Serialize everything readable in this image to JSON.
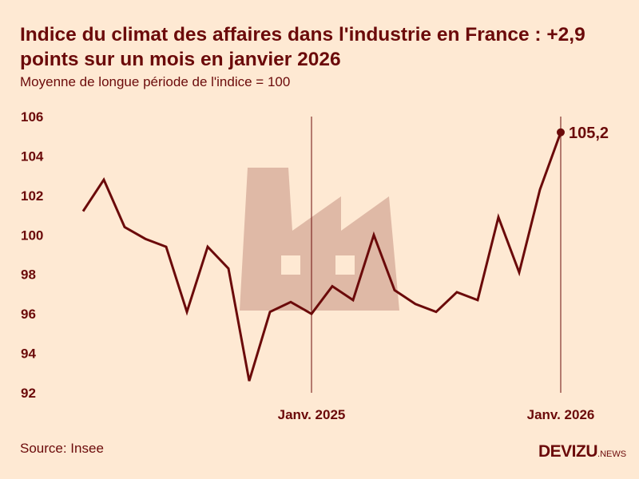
{
  "header": {
    "title": "Indice du climat des affaires dans l'industrie en France : +2,9 points sur un mois en janvier 2026",
    "subtitle": "Moyenne de longue période de l'indice = 100"
  },
  "footer": {
    "source": "Source: Insee",
    "logo": "DEVIZU",
    "logo_suffix": ".NEWS"
  },
  "colors": {
    "line": "#6b0a0a",
    "background": "#fee9d3",
    "icon": "#dfb9a6"
  },
  "decor_icon": "factory-icon",
  "chart_data": {
    "type": "line",
    "title": "Indice du climat des affaires dans l'industrie en France : +2,9 points sur un mois en janvier 2026",
    "subtitle": "Moyenne de longue période de l'indice = 100",
    "x": [
      "2024-02",
      "2024-03",
      "2024-04",
      "2024-05",
      "2024-06",
      "2024-07",
      "2024-08",
      "2024-09",
      "2024-10",
      "2024-11",
      "2024-12",
      "2025-01",
      "2025-02",
      "2025-03",
      "2025-04",
      "2025-05",
      "2025-06",
      "2025-07",
      "2025-08",
      "2025-09",
      "2025-10",
      "2025-11",
      "2025-12",
      "2026-01"
    ],
    "values": [
      101.2,
      102.8,
      100.4,
      99.8,
      99.4,
      96.1,
      99.4,
      98.3,
      92.6,
      96.1,
      96.6,
      96.0,
      97.4,
      96.7,
      100.0,
      97.2,
      96.5,
      96.1,
      97.1,
      96.7,
      100.9,
      98.1,
      102.3,
      105.2
    ],
    "ylim": [
      92,
      106
    ],
    "yticks": [
      "92",
      "94",
      "96",
      "98",
      "100",
      "102",
      "104",
      "106"
    ],
    "xticks": [
      {
        "x": "2025-01",
        "label": "Janv. 2025"
      },
      {
        "x": "2026-01",
        "label": "Janv. 2026"
      }
    ],
    "annotation": {
      "x": "2026-01",
      "label": "105,2"
    },
    "grid": false,
    "xlabel": "",
    "ylabel": ""
  }
}
